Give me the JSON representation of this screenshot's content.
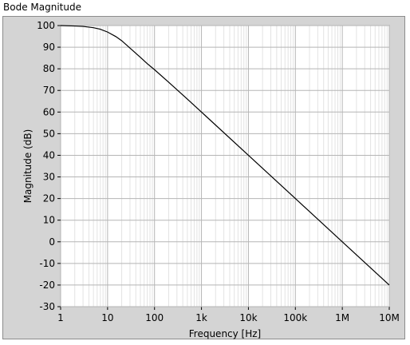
{
  "window": {
    "title": "Bode Magnitude"
  },
  "chart_data": {
    "type": "line",
    "title": "Bode Magnitude",
    "xlabel": "Frequency [Hz]",
    "ylabel": "Magnitude (dB)",
    "xscale": "log",
    "xlim": [
      1,
      10000000
    ],
    "ylim": [
      -30,
      100
    ],
    "grid": true,
    "xticks": [
      1,
      10,
      100,
      1000,
      10000,
      100000,
      1000000,
      10000000
    ],
    "xtick_labels": [
      "1",
      "10",
      "100",
      "1k",
      "10k",
      "100k",
      "1M",
      "10M"
    ],
    "yticks": [
      100,
      90,
      80,
      70,
      60,
      50,
      40,
      30,
      20,
      10,
      0,
      -10,
      -20,
      -30
    ],
    "series": [
      {
        "color": "#000000",
        "x": [
          1,
          2,
          3,
          5,
          7,
          10,
          15,
          20,
          30,
          50,
          70,
          100,
          200,
          500,
          1000,
          10000,
          100000,
          1000000,
          10000000
        ],
        "y": [
          100,
          99.8,
          99.6,
          99,
          98.3,
          97,
          94.9,
          93,
          89.6,
          85.3,
          82.4,
          79.6,
          73.8,
          66,
          60,
          40,
          20,
          0,
          -20
        ]
      }
    ]
  }
}
